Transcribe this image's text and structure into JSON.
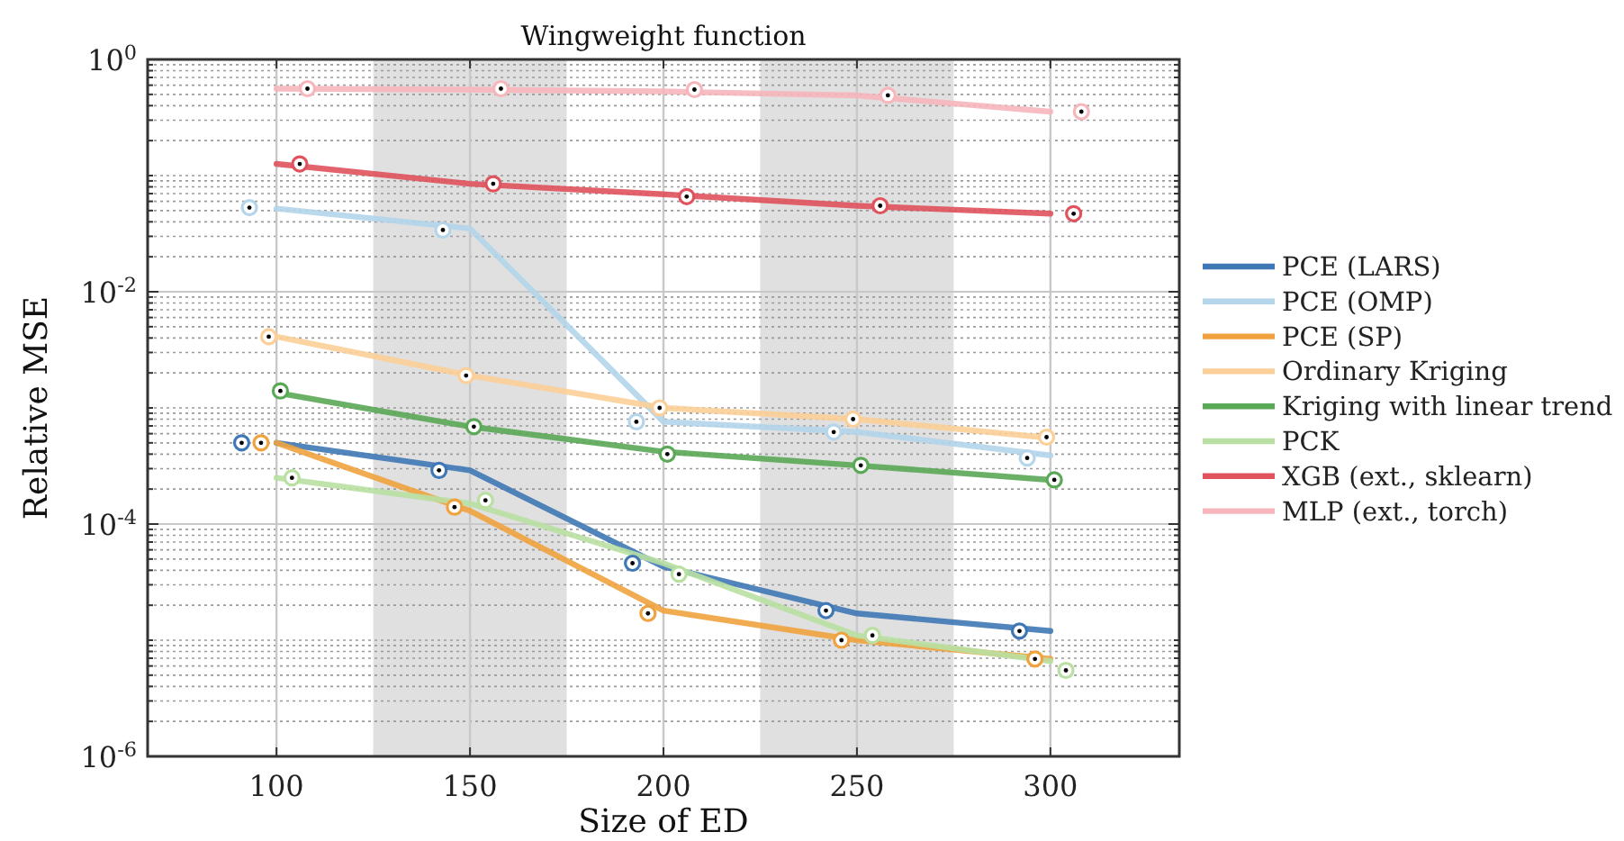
{
  "chart_data": {
    "type": "line",
    "title": "Wingweight function",
    "xlabel": "Size of ED",
    "ylabel": "Relative MSE",
    "log": "y",
    "grid": true,
    "legend": "right",
    "line_style": "solid",
    "xlim": [
      66.7,
      333.3
    ],
    "xticks": [
      100,
      150,
      200,
      250,
      300
    ],
    "ylim": [
      1e-06,
      1
    ],
    "yticks": [
      {
        "value": 1e-06,
        "label": "10$^{-6}$"
      },
      {
        "value": 0.0001,
        "label": "10$^{-4}$"
      },
      {
        "value": 0.01,
        "label": "10$^{-2}$"
      },
      {
        "value": 1,
        "label": "10$^{0}$"
      }
    ],
    "bands": [
      {
        "axis": "x",
        "from": 125,
        "to": 175,
        "color": "#e0e0e0"
      },
      {
        "axis": "x",
        "from": 225,
        "to": 275,
        "color": "#e0e0e0"
      }
    ],
    "series": [
      {
        "name": "PCE (LARS)",
        "color": "#3f78b5",
        "x": [
          100,
          150,
          200,
          250,
          300
        ],
        "values": [
          0.0005,
          0.00029,
          4.3e-05,
          1.7e-05,
          1.2e-05
        ]
      },
      {
        "name": "PCE (OMP)",
        "color": "#b4d5ea",
        "x": [
          100,
          150,
          200,
          250,
          300
        ],
        "values": [
          0.052,
          0.035,
          0.00076,
          0.00062,
          0.00039
        ]
      },
      {
        "name": "PCE (SP)",
        "color": "#f0a23e",
        "x": [
          100,
          150,
          200,
          250,
          300
        ],
        "values": [
          0.0005,
          0.00013,
          1.8e-05,
          1e-05,
          6.9e-06
        ]
      },
      {
        "name": "Ordinary Kriging",
        "color": "#fbcf97",
        "x": [
          100,
          150,
          200,
          250,
          300
        ],
        "values": [
          0.0041,
          0.0019,
          0.001,
          0.0008,
          0.00055
        ]
      },
      {
        "name": "Kriging with linear trend",
        "color": "#5aa957",
        "x": [
          100,
          150,
          200,
          250,
          300
        ],
        "values": [
          0.00135,
          0.00069,
          0.00042,
          0.00032,
          0.00024
        ]
      },
      {
        "name": "PCK",
        "color": "#b9e0a2",
        "x": [
          100,
          150,
          200,
          250,
          300
        ],
        "values": [
          0.00025,
          0.00015,
          4.6e-05,
          1.1e-05,
          6.6e-06
        ]
      },
      {
        "name": "XGB (ext., sklearn)",
        "color": "#e0525c",
        "x": [
          100,
          150,
          200,
          250,
          300
        ],
        "values": [
          0.126,
          0.085,
          0.069,
          0.055,
          0.047
        ]
      },
      {
        "name": "MLP (ext., torch)",
        "color": "#f6b6bb",
        "x": [
          100,
          150,
          200,
          250,
          300
        ],
        "values": [
          0.56,
          0.55,
          0.53,
          0.49,
          0.355
        ]
      },
      {
        "type": "scatter",
        "marker": "circle",
        "color": "#3f78b5",
        "x": [
          91,
          142,
          192,
          242,
          292
        ],
        "values": [
          0.0005,
          0.00029,
          4.6e-05,
          1.8e-05,
          1.2e-05
        ]
      },
      {
        "type": "scatter",
        "marker": "circle",
        "color": "#b4d5ea",
        "x": [
          93,
          143,
          193,
          244,
          294
        ],
        "values": [
          0.053,
          0.034,
          0.00076,
          0.00062,
          0.00037
        ]
      },
      {
        "type": "scatter",
        "marker": "circle",
        "color": "#f0a23e",
        "x": [
          96,
          146,
          196,
          246,
          296
        ],
        "values": [
          0.0005,
          0.00014,
          1.7e-05,
          1e-05,
          6.9e-06
        ]
      },
      {
        "type": "scatter",
        "marker": "circle",
        "color": "#fbcf97",
        "x": [
          98,
          149,
          199,
          249,
          299
        ],
        "values": [
          0.0041,
          0.0019,
          0.001,
          0.0008,
          0.00056
        ]
      },
      {
        "type": "scatter",
        "marker": "circle",
        "color": "#5aa957",
        "x": [
          101,
          151,
          201,
          251,
          301
        ],
        "values": [
          0.0014,
          0.00069,
          0.0004,
          0.00032,
          0.00024
        ]
      },
      {
        "type": "scatter",
        "marker": "circle",
        "color": "#b9e0a2",
        "x": [
          104,
          154,
          204,
          254,
          304
        ],
        "values": [
          0.00025,
          0.00016,
          3.7e-05,
          1.1e-05,
          5.5e-06
        ]
      },
      {
        "type": "scatter",
        "marker": "circle",
        "color": "#e0525c",
        "x": [
          106,
          156,
          206,
          256,
          306
        ],
        "values": [
          0.126,
          0.085,
          0.066,
          0.055,
          0.047
        ]
      },
      {
        "type": "scatter",
        "marker": "circle",
        "color": "#f6b6bb",
        "x": [
          108,
          158,
          208,
          258,
          308
        ],
        "values": [
          0.56,
          0.56,
          0.55,
          0.49,
          0.355
        ]
      }
    ]
  }
}
